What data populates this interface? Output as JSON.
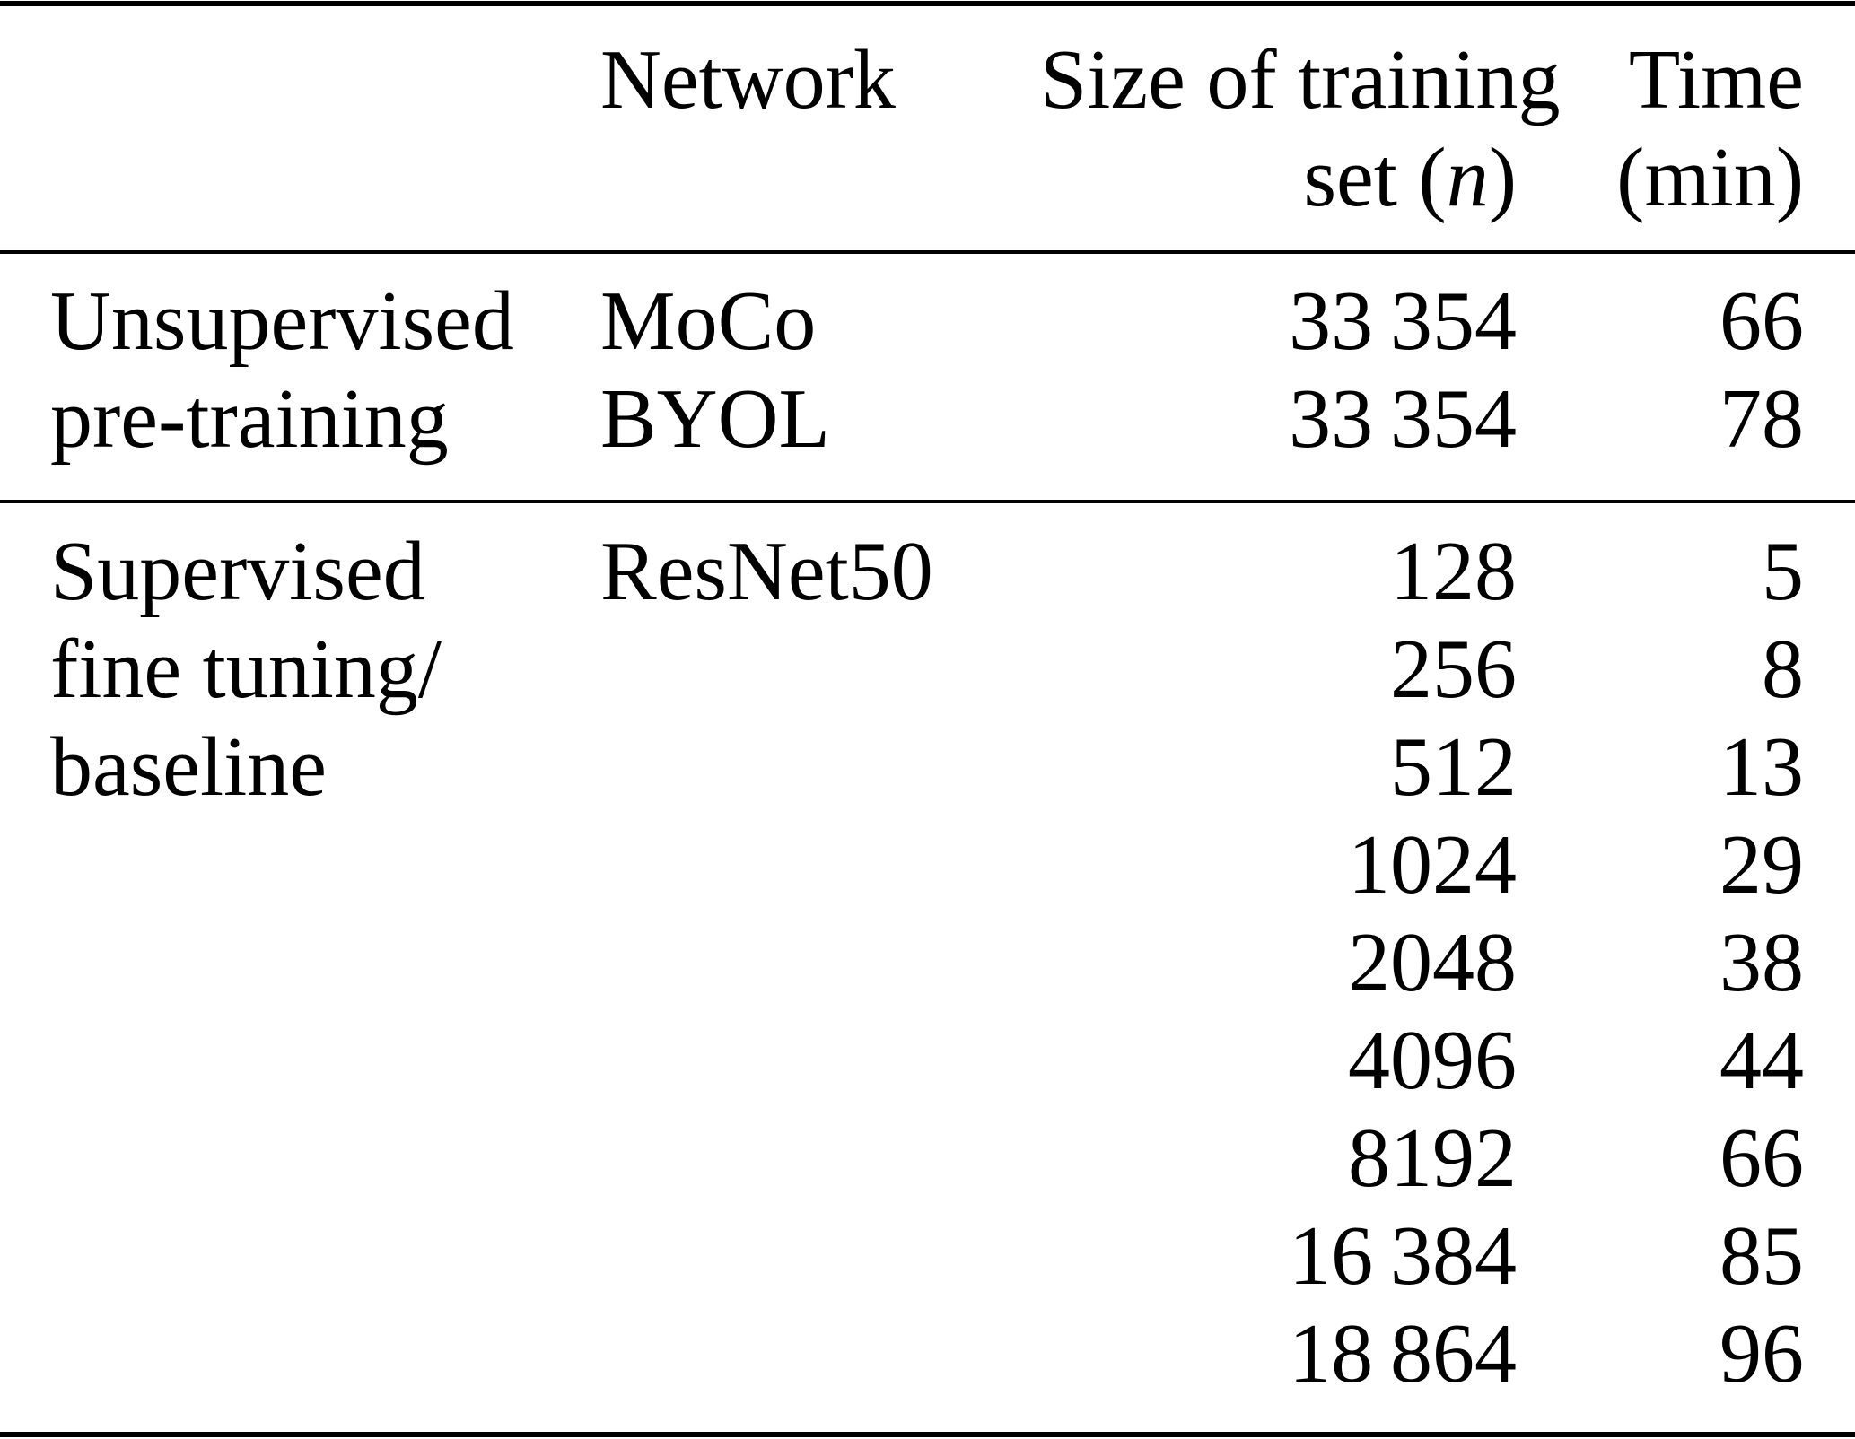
{
  "style": {
    "background": "#ffffff",
    "text_color": "#000000",
    "rule_color": "#000000"
  },
  "table": {
    "header": {
      "group": "",
      "network": "Network",
      "size_line1": "Size of training",
      "size_line2_prefix": "set (",
      "size_line2_var": "n",
      "size_line2_suffix": ")",
      "time_line1": "Time",
      "time_line2": "(min)"
    },
    "sections": [
      {
        "name": "Unsupervised pre-training",
        "label_lines": [
          "Unsupervised",
          "pre-training"
        ],
        "rows": [
          {
            "network": "MoCo",
            "size": "33 354",
            "time": "66"
          },
          {
            "network": "BYOL",
            "size": "33 354",
            "time": "78"
          }
        ]
      },
      {
        "name": "Supervised fine tuning/baseline",
        "label_lines": [
          "Supervised",
          "fine tuning/",
          "baseline"
        ],
        "rows": [
          {
            "network": "ResNet50",
            "size": "128",
            "time": "5"
          },
          {
            "network": "",
            "size": "256",
            "time": "8"
          },
          {
            "network": "",
            "size": "512",
            "time": "13"
          },
          {
            "network": "",
            "size": "1024",
            "time": "29"
          },
          {
            "network": "",
            "size": "2048",
            "time": "38"
          },
          {
            "network": "",
            "size": "4096",
            "time": "44"
          },
          {
            "network": "",
            "size": "8192",
            "time": "66"
          },
          {
            "network": "",
            "size": "16 384",
            "time": "85"
          },
          {
            "network": "",
            "size": "18 864",
            "time": "96"
          }
        ]
      }
    ]
  }
}
